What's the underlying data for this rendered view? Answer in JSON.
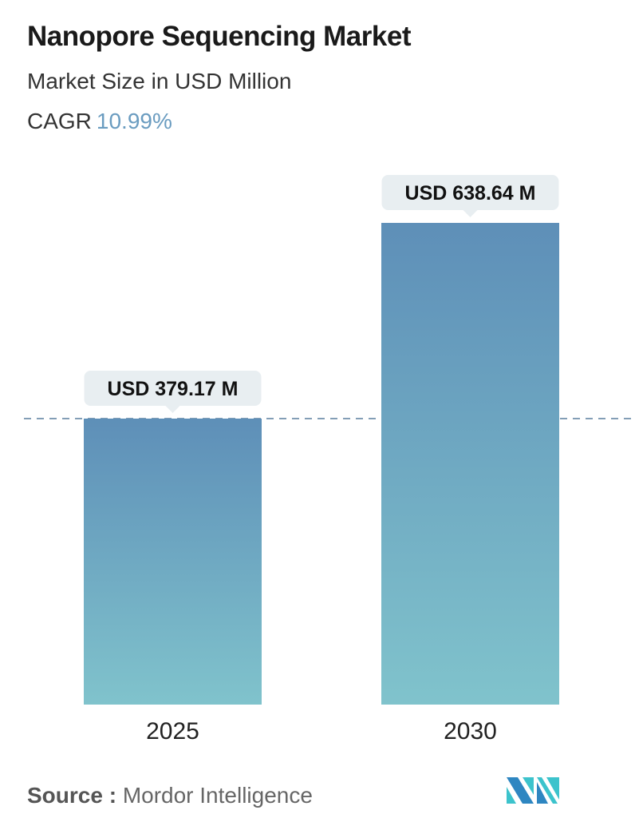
{
  "title": "Nanopore Sequencing Market",
  "subtitle": "Market Size in USD Million",
  "cagr_label": "CAGR",
  "cagr_value": "10.99%",
  "source_label": "Source :",
  "source_value": "Mordor Intelligence",
  "logo_text": "MI",
  "colors": {
    "bar_top": "#5e8fb8",
    "bar_bottom": "#80c3cc",
    "cagr": "#6a9cc0",
    "dashed_line": "#5a7f9e"
  },
  "chart_data": {
    "type": "bar",
    "categories": [
      "2025",
      "2030"
    ],
    "values": [
      379.17,
      638.64
    ],
    "data_labels": [
      "USD 379.17 M",
      "USD 638.64 M"
    ],
    "title": "Nanopore Sequencing Market",
    "ylabel": "Market Size in USD Million",
    "grid": false,
    "reference_line": "dashed line at 2025 value"
  }
}
